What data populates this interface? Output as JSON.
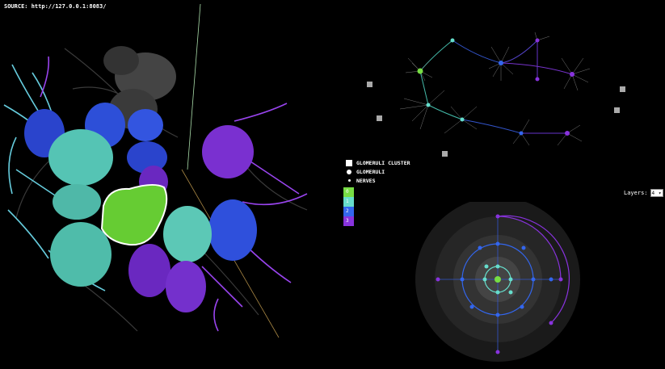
{
  "source": {
    "label": "SOURCE: http://127.0.0.1:8083/"
  },
  "legend": {
    "items": [
      {
        "label": "GLOMERULI CLUSTER",
        "icon": "square-icon"
      },
      {
        "label": "GLOMERULI",
        "icon": "dot-icon"
      },
      {
        "label": "NERVES",
        "icon": "small-dot-icon"
      }
    ]
  },
  "color_scale": [
    {
      "label": "0",
      "color": "#77dd44"
    },
    {
      "label": "1",
      "color": "#66ddcc"
    },
    {
      "label": "2",
      "color": "#3366ee"
    },
    {
      "label": "3",
      "color": "#8833dd"
    }
  ],
  "layers": {
    "label": "Layers:",
    "value": "4"
  },
  "colors": {
    "green": "#77dd44",
    "teal": "#66ddcc",
    "blue": "#3366ee",
    "purple": "#8833dd"
  }
}
